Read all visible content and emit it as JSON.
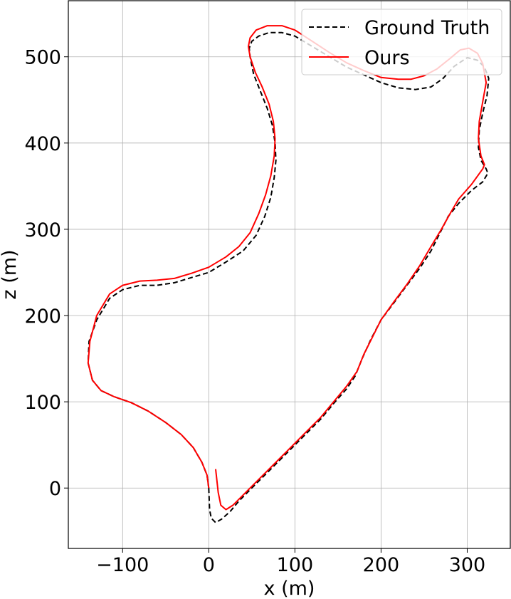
{
  "chart_data": {
    "type": "line",
    "xlabel": "x (m)",
    "ylabel": "z (m)",
    "xlim": [
      -163,
      350
    ],
    "ylim": [
      -70,
      565
    ],
    "xticks": [
      -100,
      0,
      100,
      200,
      300
    ],
    "xtick_labels": [
      "−100",
      "0",
      "100",
      "200",
      "300"
    ],
    "yticks": [
      0,
      100,
      200,
      300,
      400,
      500
    ],
    "ytick_labels": [
      "0",
      "100",
      "200",
      "300",
      "400",
      "500"
    ],
    "grid": true,
    "legend": {
      "placement": "top-right"
    },
    "series": [
      {
        "name": "Ground Truth",
        "color": "#000000",
        "style": "dashed",
        "x": [
          0,
          -2,
          -8,
          -18,
          -32,
          -50,
          -70,
          -90,
          -110,
          -125,
          -135,
          -140,
          -139,
          -130,
          -115,
          -100,
          -80,
          -60,
          -40,
          -20,
          0,
          20,
          40,
          55,
          65,
          72,
          76,
          78,
          77,
          74,
          68,
          60,
          52,
          48,
          47,
          50,
          58,
          70,
          85,
          100,
          120,
          140,
          160,
          180,
          200,
          220,
          240,
          258,
          272,
          285,
          300,
          312,
          320,
          325,
          323,
          318,
          314,
          313,
          316,
          322,
          324,
          318,
          305,
          290,
          278,
          268,
          258,
          245,
          230,
          215,
          200,
          188,
          178,
          170,
          160,
          145,
          130,
          110,
          90,
          70,
          50,
          35,
          25,
          15,
          8,
          3,
          1,
          0
        ],
        "y": [
          0,
          15,
          30,
          47,
          62,
          76,
          89,
          99,
          106,
          113,
          125,
          145,
          170,
          195,
          220,
          230,
          235,
          235,
          238,
          244,
          250,
          262,
          275,
          293,
          315,
          337,
          360,
          380,
          400,
          420,
          440,
          460,
          480,
          500,
          510,
          518,
          524,
          528,
          528,
          524,
          512,
          500,
          488,
          479,
          470,
          464,
          462,
          465,
          475,
          489,
          499,
          496,
          488,
          475,
          455,
          435,
          415,
          395,
          380,
          370,
          365,
          355,
          345,
          330,
          315,
          295,
          275,
          255,
          235,
          215,
          195,
          172,
          150,
          130,
          115,
          98,
          80,
          60,
          40,
          20,
          0,
          -15,
          -27,
          -36,
          -40,
          -35,
          -25,
          0
        ]
      },
      {
        "name": "Ours",
        "color": "#ff0000",
        "style": "solid",
        "x": [
          0,
          -2,
          -8,
          -18,
          -32,
          -50,
          -70,
          -90,
          -110,
          -125,
          -135,
          -140,
          -138,
          -130,
          -115,
          -100,
          -80,
          -60,
          -40,
          -20,
          0,
          20,
          35,
          48,
          58,
          66,
          72,
          76,
          77,
          75,
          70,
          62,
          54,
          48,
          46,
          48,
          55,
          68,
          85,
          100,
          120,
          140,
          160,
          180,
          200,
          220,
          235,
          250,
          265,
          280,
          292,
          302,
          312,
          318,
          322,
          318,
          314,
          313,
          316,
          320,
          318,
          305,
          290,
          280,
          270,
          258,
          245,
          230,
          215,
          200,
          190,
          180,
          172,
          160,
          145,
          130,
          110,
          90,
          70,
          50,
          40,
          28,
          20,
          14,
          11,
          8
        ],
        "y": [
          0,
          15,
          30,
          47,
          62,
          76,
          89,
          99,
          106,
          113,
          125,
          145,
          170,
          200,
          225,
          235,
          240,
          241,
          243,
          249,
          256,
          268,
          280,
          296,
          318,
          340,
          362,
          385,
          405,
          425,
          445,
          465,
          482,
          500,
          512,
          522,
          531,
          536,
          536,
          531,
          518,
          505,
          493,
          484,
          476,
          474,
          474,
          478,
          486,
          498,
          508,
          510,
          504,
          492,
          470,
          448,
          425,
          405,
          385,
          375,
          370,
          352,
          335,
          318,
          300,
          280,
          258,
          236,
          216,
          195,
          175,
          155,
          135,
          118,
          100,
          82,
          62,
          42,
          22,
          2,
          -8,
          -20,
          -25,
          -20,
          -5,
          22
        ]
      }
    ]
  }
}
